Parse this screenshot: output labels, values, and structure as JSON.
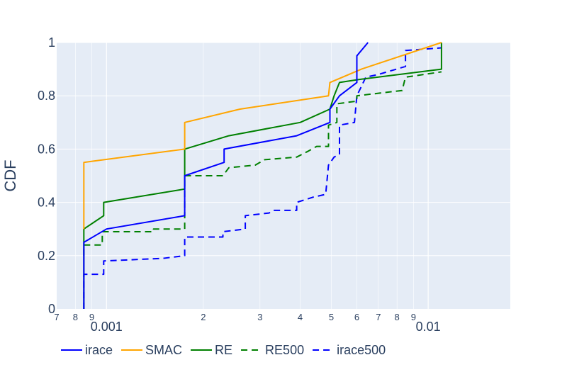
{
  "chart_data": {
    "type": "line",
    "title": "",
    "xlabel": "",
    "ylabel": "CDF",
    "xscale": "log",
    "xlim": [
      0.0007,
      0.018
    ],
    "ylim": [
      0,
      1
    ],
    "grid": true,
    "legend_position": "bottom",
    "colors": {
      "plot_bg": "#e5ecf6",
      "grid": "#ffffff",
      "text": "#2a3f5f"
    },
    "x_major_ticks": [
      {
        "value": 0.001,
        "label": "0.001"
      },
      {
        "value": 0.01,
        "label": "0.01"
      }
    ],
    "x_minor_ticks": [
      {
        "value": 0.0007,
        "label": "7"
      },
      {
        "value": 0.0008,
        "label": "8"
      },
      {
        "value": 0.0009,
        "label": "9"
      },
      {
        "value": 0.002,
        "label": "2"
      },
      {
        "value": 0.003,
        "label": "3"
      },
      {
        "value": 0.004,
        "label": "4"
      },
      {
        "value": 0.005,
        "label": "5"
      },
      {
        "value": 0.006,
        "label": "6"
      },
      {
        "value": 0.007,
        "label": "7"
      },
      {
        "value": 0.008,
        "label": "8"
      },
      {
        "value": 0.009,
        "label": "9"
      }
    ],
    "y_ticks": [
      {
        "value": 0,
        "label": "0"
      },
      {
        "value": 0.2,
        "label": "0.2"
      },
      {
        "value": 0.4,
        "label": "0.4"
      },
      {
        "value": 0.6,
        "label": "0.6"
      },
      {
        "value": 0.8,
        "label": "0.8"
      },
      {
        "value": 1,
        "label": "1"
      }
    ],
    "series": [
      {
        "name": "irace",
        "color": "#0000ff",
        "dash": "solid",
        "x": [
          0.00085,
          0.00085,
          0.001,
          0.00175,
          0.00175,
          0.00232,
          0.00232,
          0.0039,
          0.00495,
          0.00495,
          0.0053,
          0.006,
          0.006,
          0.0065
        ],
        "y": [
          0.0,
          0.25,
          0.3,
          0.35,
          0.5,
          0.55,
          0.6,
          0.65,
          0.7,
          0.75,
          0.8,
          0.85,
          0.95,
          1.0
        ]
      },
      {
        "name": "SMAC",
        "color": "#ffa500",
        "dash": "solid",
        "x": [
          0.00085,
          0.00085,
          0.00175,
          0.00175,
          0.0026,
          0.0049,
          0.00495,
          0.0062,
          0.011
        ],
        "y": [
          0.3,
          0.55,
          0.6,
          0.7,
          0.75,
          0.8,
          0.85,
          0.9,
          1.0
        ]
      },
      {
        "name": "RE",
        "color": "#008000",
        "dash": "solid",
        "x": [
          0.00085,
          0.00085,
          0.00098,
          0.00098,
          0.00175,
          0.00175,
          0.00175,
          0.0024,
          0.004,
          0.00495,
          0.0051,
          0.0053,
          0.006,
          0.011,
          0.011
        ],
        "y": [
          0.0,
          0.3,
          0.35,
          0.4,
          0.45,
          0.5,
          0.6,
          0.65,
          0.7,
          0.75,
          0.8,
          0.85,
          0.86,
          0.9,
          1.0
        ]
      },
      {
        "name": "RE500",
        "color": "#008000",
        "dash": "dash",
        "x": [
          0.00085,
          0.00085,
          0.00097,
          0.00097,
          0.0014,
          0.0014,
          0.00175,
          0.00175,
          0.0023,
          0.0024,
          0.0029,
          0.0031,
          0.0039,
          0.0042,
          0.0045,
          0.0049,
          0.0049,
          0.0052,
          0.0052,
          0.006,
          0.006,
          0.0083,
          0.0085,
          0.011
        ],
        "y": [
          0.2,
          0.24,
          0.24,
          0.29,
          0.29,
          0.3,
          0.3,
          0.5,
          0.5,
          0.53,
          0.54,
          0.56,
          0.57,
          0.59,
          0.61,
          0.61,
          0.69,
          0.7,
          0.77,
          0.78,
          0.8,
          0.82,
          0.87,
          0.89
        ]
      },
      {
        "name": "irace500",
        "color": "#0000ff",
        "dash": "dash",
        "x": [
          0.00085,
          0.00085,
          0.00098,
          0.00098,
          0.0015,
          0.00175,
          0.00175,
          0.0023,
          0.0023,
          0.0027,
          0.0027,
          0.0032,
          0.0033,
          0.0039,
          0.0039,
          0.0044,
          0.0048,
          0.0049,
          0.0051,
          0.0053,
          0.0053,
          0.0059,
          0.006,
          0.0064,
          0.007,
          0.0085,
          0.0085,
          0.011
        ],
        "y": [
          0.0,
          0.13,
          0.13,
          0.18,
          0.19,
          0.2,
          0.27,
          0.27,
          0.29,
          0.3,
          0.35,
          0.36,
          0.37,
          0.37,
          0.4,
          0.42,
          0.43,
          0.54,
          0.57,
          0.58,
          0.69,
          0.7,
          0.8,
          0.87,
          0.88,
          0.91,
          0.97,
          0.98
        ]
      }
    ]
  }
}
